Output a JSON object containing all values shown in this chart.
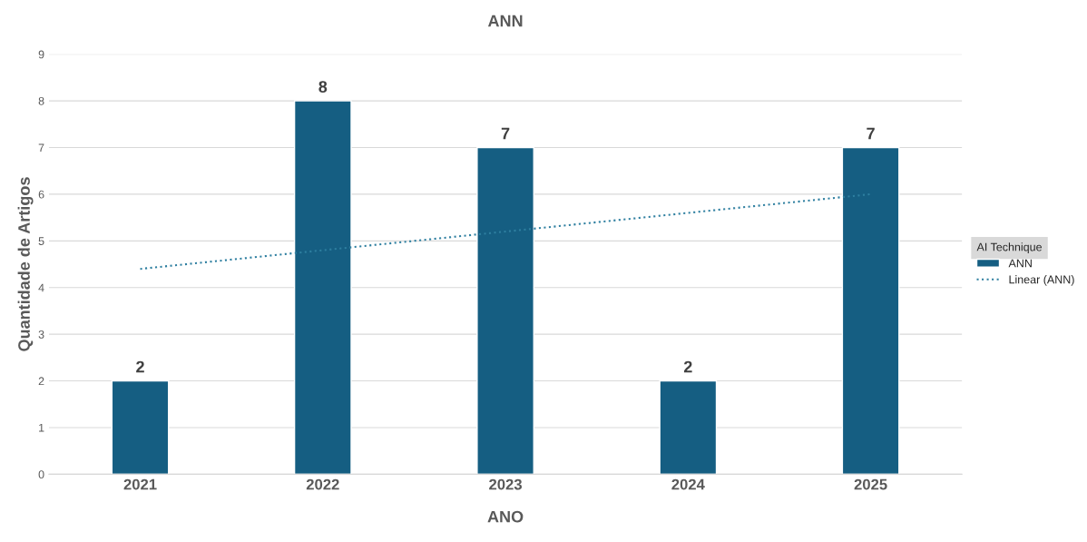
{
  "chart_data": {
    "type": "bar",
    "title": "ANN",
    "xlabel": "ANO",
    "ylabel": "Quantidade de Artigos",
    "legend_title": "AI Technique",
    "categories": [
      "2021",
      "2022",
      "2023",
      "2024",
      "2025"
    ],
    "series": [
      {
        "name": "ANN",
        "color": "#155e82",
        "values": [
          2,
          8,
          7,
          2,
          7
        ],
        "value_labels": [
          "2",
          "8",
          "7",
          "2",
          "7"
        ]
      },
      {
        "name": "Linear (ANN)",
        "type": "line",
        "color": "#2e7fa0",
        "line_style": "dotted",
        "values": [
          4.4,
          4.8,
          5.2,
          5.6,
          6.0
        ]
      }
    ],
    "ylim": [
      0,
      9
    ],
    "yticks": [
      0,
      1,
      2,
      3,
      4,
      5,
      6,
      7,
      8,
      9
    ],
    "grid": "y",
    "legend": "right"
  }
}
